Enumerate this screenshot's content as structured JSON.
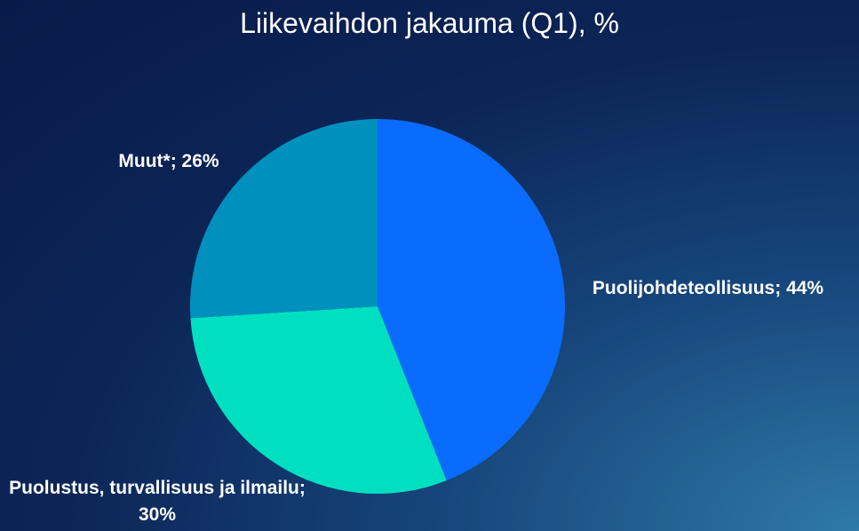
{
  "chart_data": {
    "type": "pie",
    "title": "Liikevaihdon jakauma (Q1), %",
    "values": [
      44,
      30,
      26
    ],
    "value_labels": [
      "Puolijohdeteollisuus; 44%",
      "Puolustus, turvallisuus ja ilmailu; 30%",
      "Muut*; 26%"
    ],
    "colors": [
      "#0a6cff",
      "#00e0c1",
      "#0090be"
    ]
  }
}
